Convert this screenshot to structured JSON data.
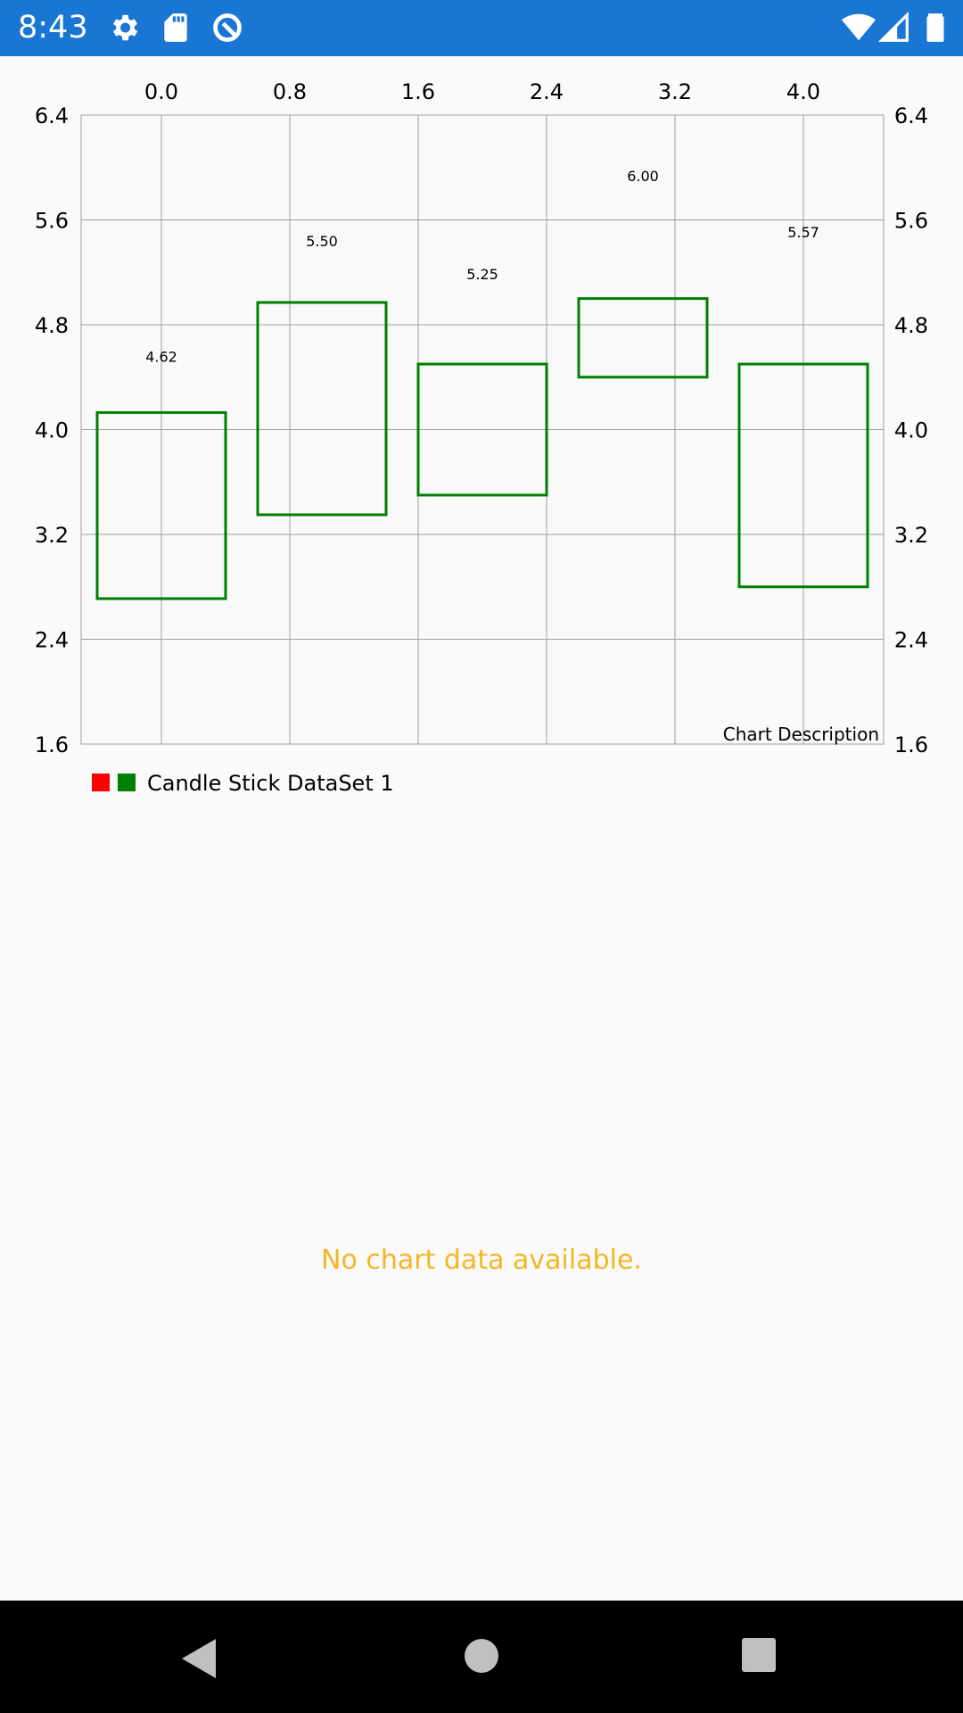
{
  "status_bar": {
    "time": "8:43",
    "color": "#1976d2",
    "left_icons": [
      "gear-icon",
      "sd-card-icon",
      "sync-icon"
    ],
    "right_icons": [
      "wifi-icon",
      "cell-signal-icon",
      "battery-icon"
    ]
  },
  "chart_data": {
    "type": "candlestick",
    "x_axis": {
      "position": "top",
      "ticks": [
        "0.0",
        "0.8",
        "1.6",
        "2.4",
        "3.2",
        "4.0"
      ],
      "min": -0.5,
      "max": 4.5
    },
    "y_axis": {
      "ticks": [
        "1.6",
        "2.4",
        "3.2",
        "4.0",
        "4.8",
        "5.6",
        "6.4"
      ],
      "min": 1.6,
      "max": 6.4,
      "left_labels": true,
      "right_labels": true
    },
    "grid": true,
    "series": [
      {
        "name": "Candle Stick DataSet 1",
        "increasing_color": "#008000",
        "decreasing_color": "#ff0000",
        "candles": [
          {
            "x": 0,
            "open": 2.71,
            "close": 4.13,
            "label": "4.62"
          },
          {
            "x": 1,
            "open": 3.35,
            "close": 4.97,
            "label": "5.50"
          },
          {
            "x": 2,
            "open": 3.5,
            "close": 4.5,
            "label": "5.25"
          },
          {
            "x": 3,
            "open": 4.4,
            "close": 5.0,
            "label": "6.00"
          },
          {
            "x": 4,
            "open": 2.8,
            "close": 4.5,
            "label": "5.57"
          }
        ]
      }
    ],
    "description": "Chart Description",
    "legend": {
      "placement": "bottom-left",
      "colors": [
        "#ff0000",
        "#008000"
      ],
      "label": "Candle Stick DataSet 1"
    }
  },
  "empty_chart": {
    "message": "No chart data available.",
    "color": "#f5b625"
  },
  "nav_bar": {
    "buttons": [
      "back-icon",
      "home-icon",
      "recents-icon"
    ]
  }
}
